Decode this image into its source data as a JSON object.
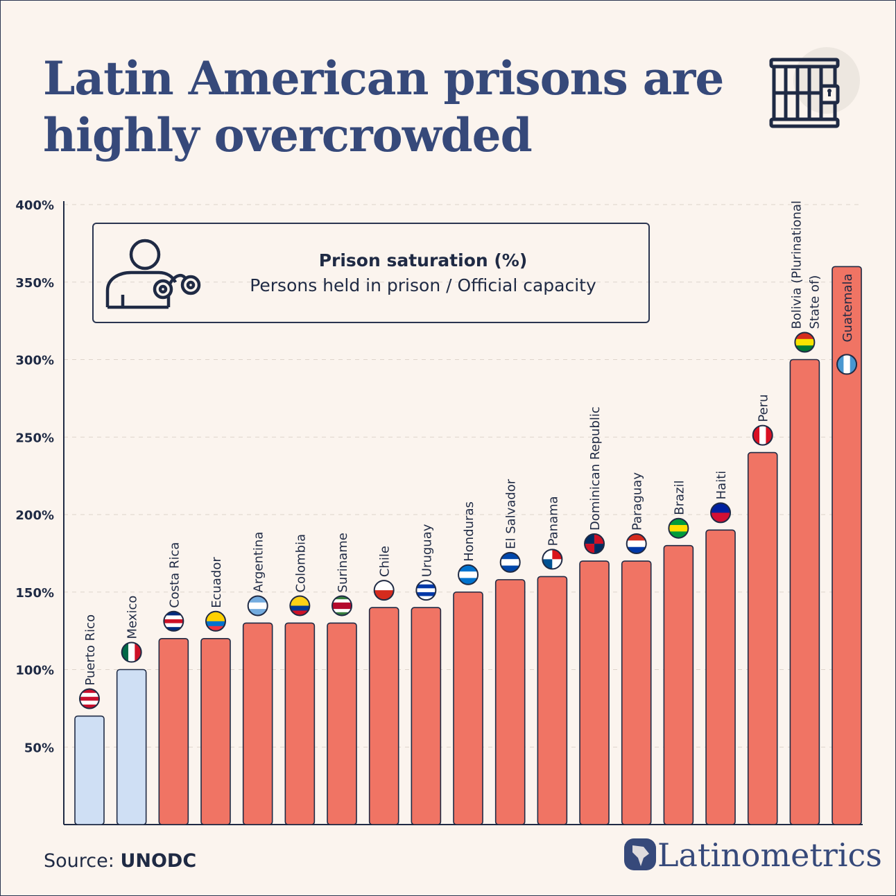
{
  "title_line1": "Latin American prisons are",
  "title_line2": "highly overcrowded",
  "legend": {
    "title": "Prison saturation (%)",
    "subtitle": "Persons held in prison / Official capacity"
  },
  "source_label": "Source:",
  "source_value": "UNODC",
  "brand": "Latinometrics",
  "icons": [
    "prison-cell-icon",
    "handcuffed-person-icon",
    "latinometrics-logo-icon"
  ],
  "colors": {
    "bar_over": "#f07464",
    "bar_under": "#cfdff4",
    "text": "#1f2a44",
    "title": "#36497a",
    "background": "#fbf4ee"
  },
  "chart_data": {
    "type": "bar",
    "title": "Latin American prisons are highly overcrowded",
    "xlabel": "",
    "ylabel": "",
    "ylim": [
      0,
      400
    ],
    "yticks": [
      "50%",
      "100%",
      "150%",
      "200%",
      "250%",
      "300%",
      "350%",
      "400%"
    ],
    "ytick_values": [
      50,
      100,
      150,
      200,
      250,
      300,
      350,
      400
    ],
    "grid": "horizontal dashed",
    "categories": [
      "Puerto Rico",
      "Mexico",
      "Costa Rica",
      "Ecuador",
      "Argentina",
      "Colombia",
      "Suriname",
      "Chile",
      "Uruguay",
      "Honduras",
      "El Salvador",
      "Panama",
      "Dominican Republic",
      "Paraguay",
      "Brazil",
      "Haiti",
      "Peru",
      "Bolivia (Plurinational State of)",
      "Guatemala"
    ],
    "label_lines": [
      [
        "Puerto Rico"
      ],
      [
        "Mexico"
      ],
      [
        "Costa Rica"
      ],
      [
        "Ecuador"
      ],
      [
        "Argentina"
      ],
      [
        "Colombia"
      ],
      [
        "Suriname"
      ],
      [
        "Chile"
      ],
      [
        "Uruguay"
      ],
      [
        "Honduras"
      ],
      [
        "El Salvador"
      ],
      [
        "Panama"
      ],
      [
        "Dominican Republic"
      ],
      [
        "Paraguay"
      ],
      [
        "Brazil"
      ],
      [
        "Haiti"
      ],
      [
        "Peru"
      ],
      [
        "Bolivia (Plurinational",
        "State of)"
      ],
      [
        "Guatemala"
      ]
    ],
    "values": [
      70,
      100,
      120,
      120,
      130,
      130,
      130,
      140,
      140,
      150,
      158,
      160,
      170,
      170,
      180,
      190,
      240,
      300,
      360
    ],
    "flags": [
      {
        "dir": "h",
        "c": [
          "#c8102e",
          "#fff",
          "#c8102e",
          "#fff",
          "#c8102e"
        ]
      },
      {
        "dir": "v",
        "c": [
          "#006847",
          "#fff",
          "#ce1126"
        ]
      },
      {
        "dir": "h",
        "c": [
          "#002b7f",
          "#fff",
          "#ce1126",
          "#fff",
          "#002b7f"
        ]
      },
      {
        "dir": "h",
        "c": [
          "#ffd100",
          "#ffd100",
          "#0072ce",
          "#ef3340"
        ]
      },
      {
        "dir": "h",
        "c": [
          "#74acdf",
          "#fff",
          "#74acdf"
        ]
      },
      {
        "dir": "h",
        "c": [
          "#fcd116",
          "#fcd116",
          "#003893",
          "#ce1126"
        ]
      },
      {
        "dir": "h",
        "c": [
          "#377e3f",
          "#fff",
          "#b40a2d",
          "#b40a2d",
          "#fff",
          "#377e3f"
        ]
      },
      {
        "dir": "h",
        "c": [
          "#fff",
          "#d52b1e"
        ]
      },
      {
        "dir": "h",
        "c": [
          "#fff",
          "#0038a8",
          "#fff",
          "#0038a8",
          "#fff"
        ]
      },
      {
        "dir": "h",
        "c": [
          "#0073cf",
          "#fff",
          "#0073cf"
        ]
      },
      {
        "dir": "h",
        "c": [
          "#0047ab",
          "#fff",
          "#0047ab"
        ]
      },
      {
        "dir": "q",
        "c": [
          "#fff",
          "#da121a",
          "#005293",
          "#fff"
        ]
      },
      {
        "dir": "q",
        "c": [
          "#002d62",
          "#ce1126",
          "#ce1126",
          "#002d62"
        ]
      },
      {
        "dir": "h",
        "c": [
          "#d52b1e",
          "#fff",
          "#0038a8"
        ]
      },
      {
        "dir": "h",
        "c": [
          "#009c3b",
          "#ffdf00",
          "#009c3b"
        ]
      },
      {
        "dir": "h",
        "c": [
          "#00209f",
          "#d21034"
        ]
      },
      {
        "dir": "v",
        "c": [
          "#d91023",
          "#fff",
          "#d91023"
        ]
      },
      {
        "dir": "h",
        "c": [
          "#d52b1e",
          "#f9e300",
          "#007934"
        ]
      },
      {
        "dir": "v",
        "c": [
          "#4997d0",
          "#fff",
          "#4997d0"
        ]
      }
    ]
  }
}
